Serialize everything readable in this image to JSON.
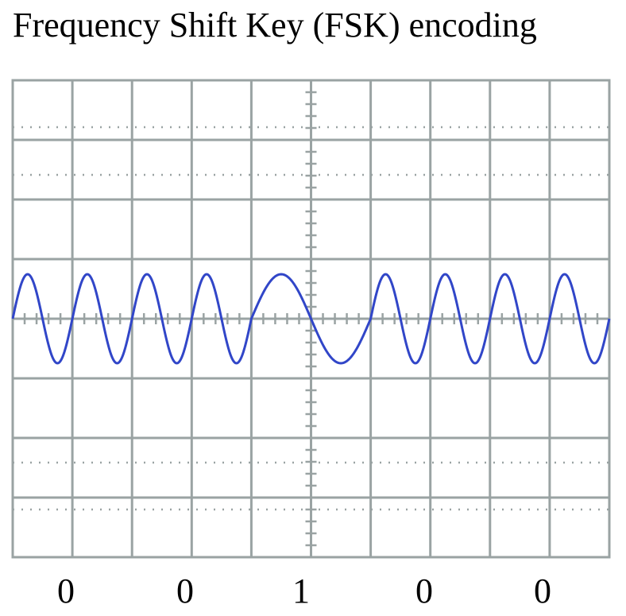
{
  "title": "Frequency Shift Key (FSK) encoding",
  "bits": [
    "0",
    "0",
    "1",
    "0",
    "0"
  ],
  "colors": {
    "grid": "#9aa3a3",
    "dotted": "#9aa3a3",
    "signal": "#3146c8"
  },
  "signal": {
    "cycles_per_bit_zero": 2,
    "cycles_per_bit_one": 1
  }
}
